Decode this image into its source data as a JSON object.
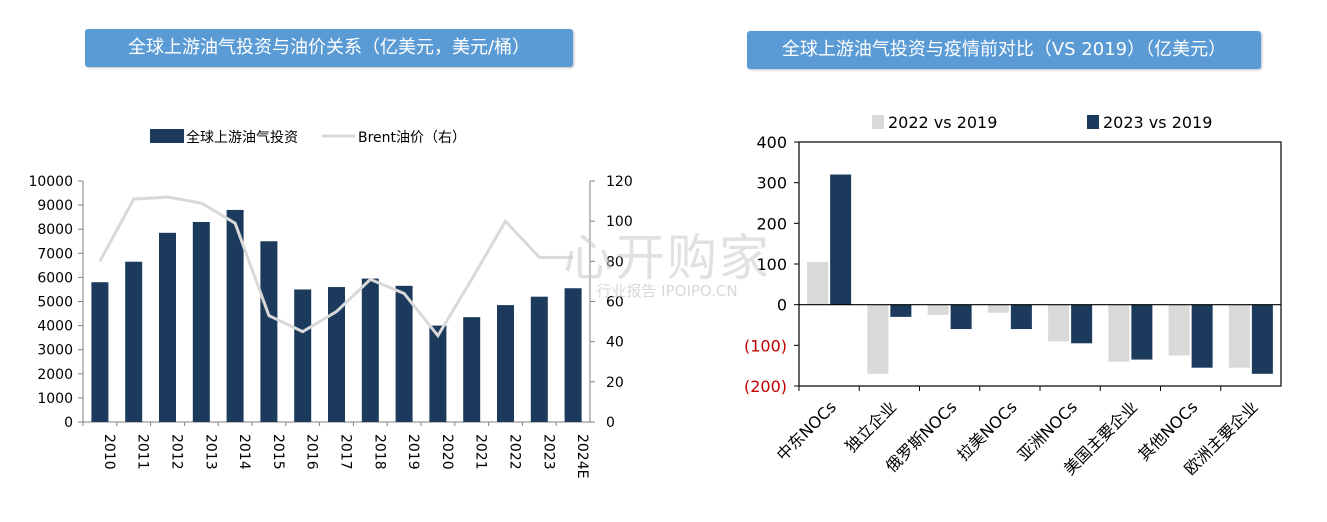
{
  "chart_data": [
    {
      "type": "bar",
      "title": "全球上游油气投资与油价关系（亿美元，美元/桶）",
      "categories": [
        "2010",
        "2011",
        "2012",
        "2013",
        "2014",
        "2015",
        "2016",
        "2017",
        "2018",
        "2019",
        "2020",
        "2021",
        "2022",
        "2023",
        "2024E"
      ],
      "series": [
        {
          "name": "全球上游油气投资",
          "type": "bar",
          "axis": "left",
          "values": [
            5800,
            6650,
            7850,
            8300,
            8800,
            7500,
            5500,
            5600,
            5950,
            5650,
            4000,
            4350,
            4850,
            5200,
            5550
          ]
        },
        {
          "name": "Brent油价（右）",
          "type": "line",
          "axis": "right",
          "values": [
            80,
            111,
            112,
            109,
            99,
            53,
            45,
            55,
            71,
            64,
            43,
            71,
            100,
            82,
            82
          ]
        }
      ],
      "ylim_left": [
        0,
        10000
      ],
      "yticks_left": [
        "0",
        "1000",
        "2000",
        "3000",
        "4000",
        "5000",
        "6000",
        "7000",
        "8000",
        "9000",
        "10000"
      ],
      "ylim_right": [
        0,
        120
      ],
      "yticks_right": [
        "0",
        "20",
        "40",
        "60",
        "80",
        "100",
        "120"
      ],
      "legend_position": "top",
      "colors": {
        "bar": "#1b3a5c",
        "line": "#d9d9d9"
      }
    },
    {
      "type": "bar",
      "title": "全球上游油气投资与疫情前对比（VS 2019）（亿美元）",
      "categories": [
        "中东NOCs",
        "独立企业",
        "俄罗斯NOCs",
        "拉美NOCs",
        "亚洲NOCs",
        "美国主要企业",
        "其他NOCs",
        "欧洲主要企业"
      ],
      "series": [
        {
          "name": "2022 vs 2019",
          "values": [
            105,
            -170,
            -25,
            -20,
            -90,
            -140,
            -125,
            -155
          ]
        },
        {
          "name": "2023 vs 2019",
          "values": [
            320,
            -30,
            -60,
            -60,
            -95,
            -135,
            -155,
            -170
          ]
        }
      ],
      "ylim": [
        -200,
        400
      ],
      "yticks": [
        "(200)",
        "(100)",
        "0",
        "100",
        "200",
        "300",
        "400"
      ],
      "legend_position": "top",
      "colors": {
        "series1": "#d9d9d9",
        "series2": "#1b3a5c",
        "negative_tick": "#c00000"
      }
    }
  ],
  "watermark": {
    "big": "心开购家",
    "small": "行业报告 IPOIPO.CN"
  }
}
